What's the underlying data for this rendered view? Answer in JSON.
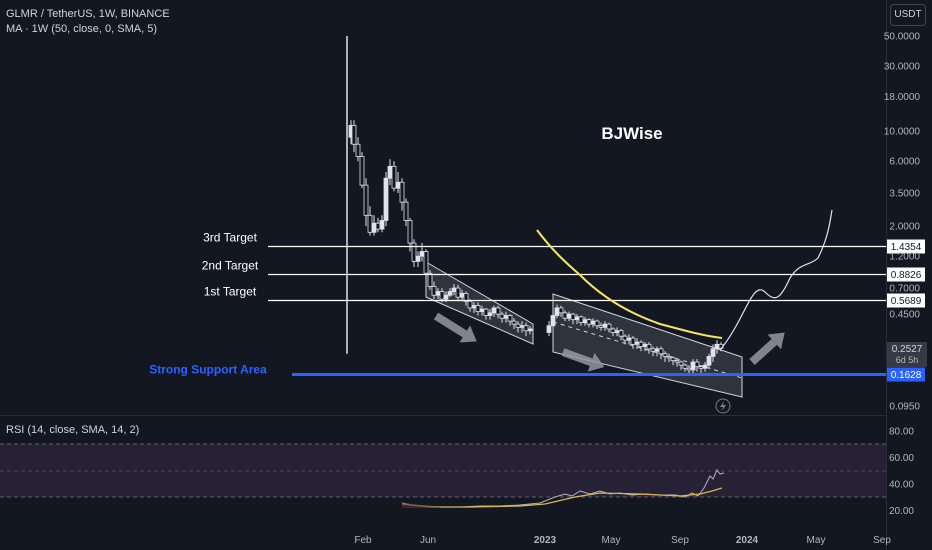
{
  "header": {
    "symbol_line": "GLMR / TetherUS, 1W, BINANCE",
    "ma_line": "MA · 1W (50, close, 0, SMA, 5)",
    "rsi_line": "RSI (14, close, SMA, 14, 2)",
    "currency": "USDT"
  },
  "chart_data": {
    "type": "line",
    "y_scale": "log",
    "price_ticks": [
      "50.0000",
      "30.0000",
      "18.0000",
      "10.0000",
      "6.0000",
      "3.5000",
      "2.0000",
      "1.2000",
      "0.7000",
      "0.4500",
      "0.0950"
    ],
    "x_ticks": [
      "Feb",
      "Jun",
      "2023",
      "May",
      "Sep",
      "2024",
      "May",
      "Sep"
    ],
    "rsi_ticks": [
      "80.00",
      "60.00",
      "40.00",
      "20.00"
    ],
    "levels": [
      {
        "label": "3rd Target",
        "value": "1.4354"
      },
      {
        "label": "2nd Target",
        "value": "0.8826"
      },
      {
        "label": "1st Target",
        "value": "0.5689"
      },
      {
        "label": "Strong Support Area",
        "value": "0.1628"
      }
    ],
    "last_price": "0.2527",
    "countdown": "6d 5h",
    "watermark": "BJWise",
    "colors": {
      "bg": "#131722",
      "support": "#2962ff",
      "ma": "#f7e463",
      "candle": "#e0e3eb",
      "rsi_band": "#2a2237",
      "rsi_ma": "#d7b84a",
      "rsi_line": "#b2b5be"
    }
  }
}
